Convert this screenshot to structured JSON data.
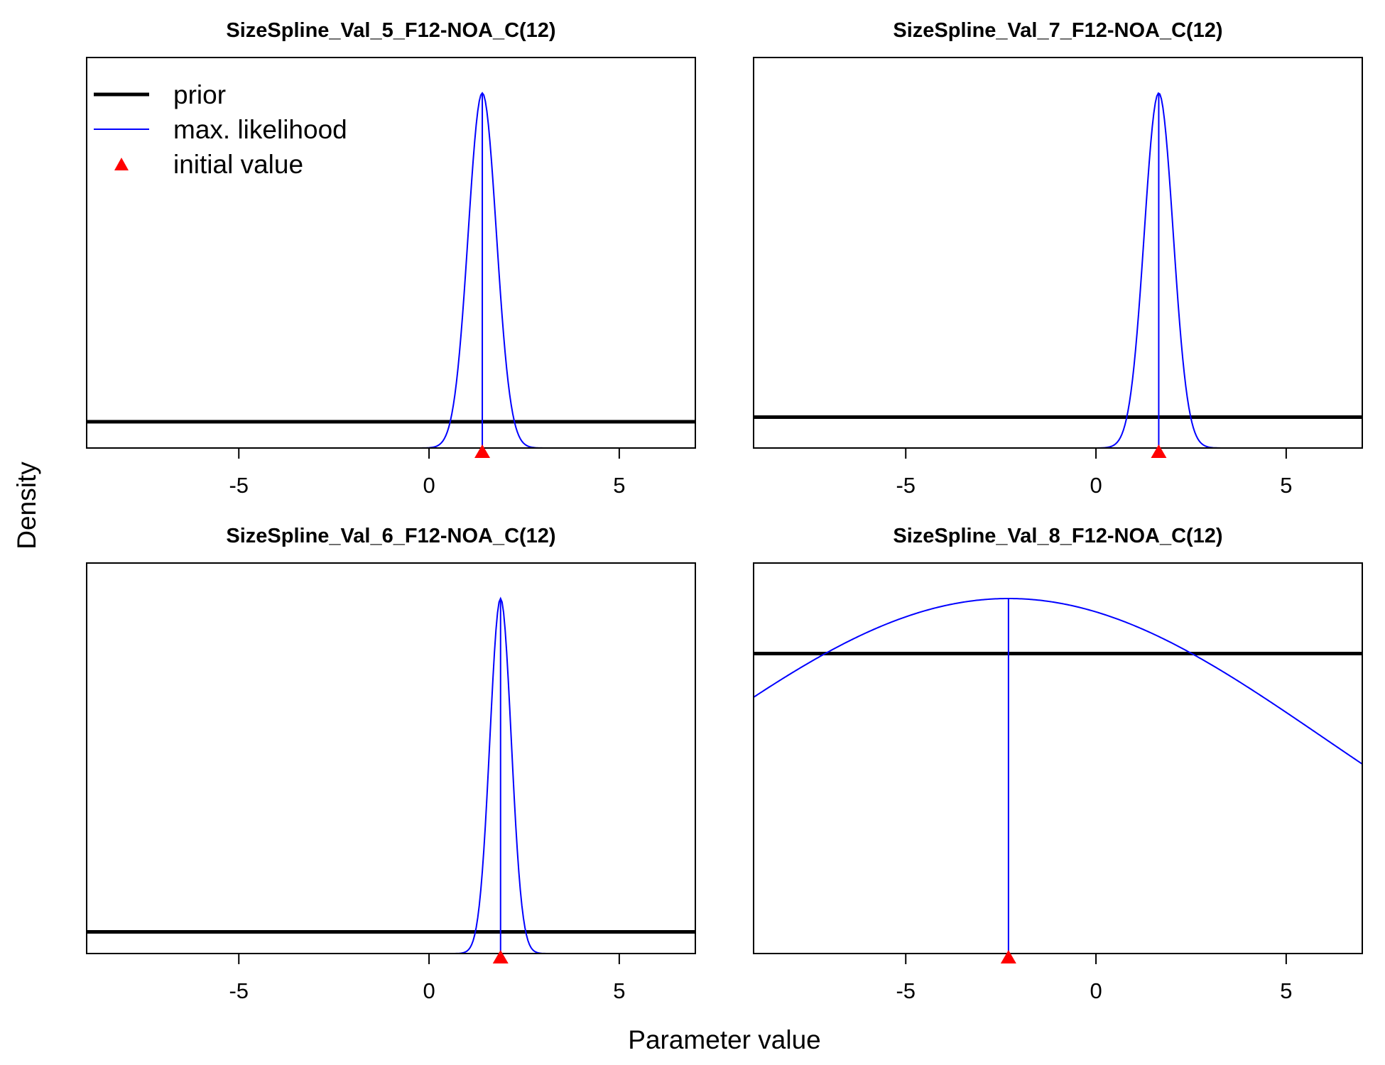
{
  "figure": {
    "xlabel": "Parameter value",
    "ylabel": "Density"
  },
  "legend": {
    "placement": "top-left",
    "entries": [
      {
        "label": "prior",
        "type": "line",
        "color": "#000000",
        "thick": true
      },
      {
        "label": "max. likelihood",
        "type": "line",
        "color": "#0000ff",
        "thick": false
      },
      {
        "label": "initial value",
        "type": "marker",
        "color": "#ff0000",
        "marker": "triangle"
      }
    ]
  },
  "colors": {
    "prior": "#000000",
    "likelihood": "#0000ff",
    "initial": "#ff0000"
  },
  "chart_data": [
    {
      "type": "line",
      "title": "SizeSpline_Val_5_F12-NOA_C(12)",
      "xlim": [
        -9,
        7
      ],
      "xticks": [
        -5,
        0,
        5
      ],
      "ylim": [
        0,
        1.1
      ],
      "prior_level": 0.074,
      "likelihood": {
        "shape": "normal",
        "mean": 1.4,
        "sd": 0.37,
        "peak": 1.0
      },
      "mle": 1.4,
      "initial_value": 1.4,
      "show_legend": true
    },
    {
      "type": "line",
      "title": "SizeSpline_Val_7_F12-NOA_C(12)",
      "xlim": [
        -9,
        7
      ],
      "xticks": [
        -5,
        0,
        5
      ],
      "ylim": [
        0,
        1.1
      ],
      "prior_level": 0.087,
      "likelihood": {
        "shape": "normal",
        "mean": 1.65,
        "sd": 0.38,
        "peak": 1.0
      },
      "mle": 1.65,
      "initial_value": 1.65,
      "show_legend": false
    },
    {
      "type": "line",
      "title": "SizeSpline_Val_6_F12-NOA_C(12)",
      "xlim": [
        -9,
        7
      ],
      "xticks": [
        -5,
        0,
        5
      ],
      "ylim": [
        0,
        1.1
      ],
      "prior_level": 0.061,
      "likelihood": {
        "shape": "normal",
        "mean": 1.88,
        "sd": 0.28,
        "peak": 1.0
      },
      "mle": 1.88,
      "initial_value": 1.88,
      "show_legend": false
    },
    {
      "type": "line",
      "title": "SizeSpline_Val_8_F12-NOA_C(12)",
      "xlim": [
        -9,
        7
      ],
      "xticks": [
        -5,
        0,
        5
      ],
      "ylim": [
        0,
        1.1
      ],
      "prior_level": 0.845,
      "likelihood": {
        "shape": "normal",
        "mean": -2.3,
        "sd": 8.3,
        "peak": 1.0
      },
      "mle": -2.3,
      "initial_value": -2.3,
      "show_legend": false
    }
  ]
}
